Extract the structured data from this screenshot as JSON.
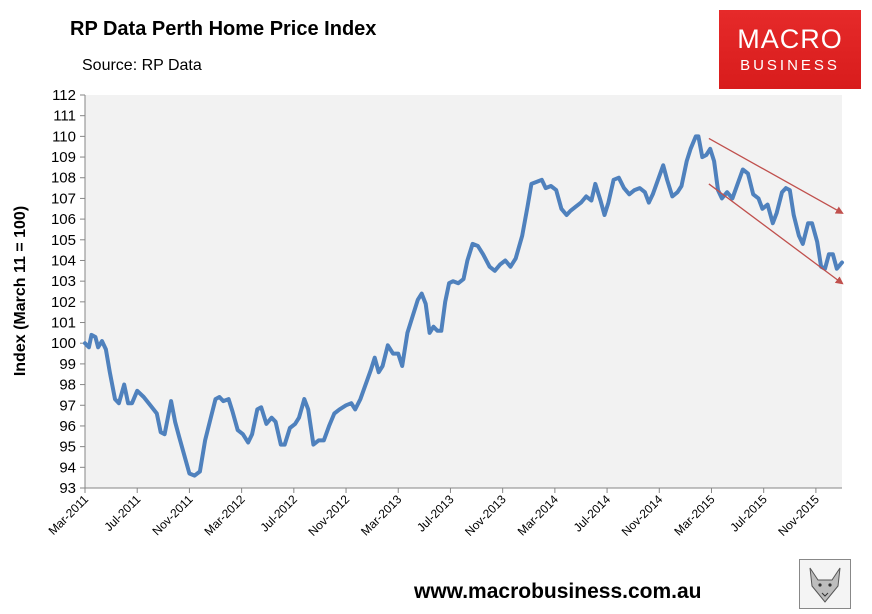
{
  "header": {
    "title": "RP Data Perth Home Price Index",
    "subtitle": "Source: RP Data"
  },
  "logo": {
    "line1": "MACRO",
    "line2": "BUSINESS"
  },
  "footer": {
    "url": "www.macrobusiness.com.au"
  },
  "chart_data": {
    "type": "line",
    "title": "RP Data Perth Home Price Index",
    "xlabel": "",
    "ylabel": "Index (March 11 = 100)",
    "ylim": [
      93,
      112
    ],
    "xlim": [
      0,
      58
    ],
    "yticks": [
      93,
      94,
      95,
      96,
      97,
      98,
      99,
      100,
      101,
      102,
      103,
      104,
      105,
      106,
      107,
      108,
      109,
      110,
      111,
      112
    ],
    "xticks": [
      {
        "x": 0,
        "label": "Mar-2011"
      },
      {
        "x": 4,
        "label": "Jul-2011"
      },
      {
        "x": 8,
        "label": "Nov-2011"
      },
      {
        "x": 12,
        "label": "Mar-2012"
      },
      {
        "x": 16,
        "label": "Jul-2012"
      },
      {
        "x": 20,
        "label": "Nov-2012"
      },
      {
        "x": 24,
        "label": "Mar-2013"
      },
      {
        "x": 28,
        "label": "Jul-2013"
      },
      {
        "x": 32,
        "label": "Nov-2013"
      },
      {
        "x": 36,
        "label": "Mar-2014"
      },
      {
        "x": 40,
        "label": "Jul-2014"
      },
      {
        "x": 44,
        "label": "Nov-2014"
      },
      {
        "x": 48,
        "label": "Mar-2015"
      },
      {
        "x": 52,
        "label": "Jul-2015"
      },
      {
        "x": 56,
        "label": "Nov-2015"
      }
    ],
    "grid": false,
    "series": [
      {
        "name": "Perth Home Price Index",
        "color": "#4f81bd",
        "points": [
          [
            0,
            100.0
          ],
          [
            0.3,
            99.8
          ],
          [
            0.5,
            100.4
          ],
          [
            0.8,
            100.3
          ],
          [
            1.0,
            99.8
          ],
          [
            1.3,
            100.1
          ],
          [
            1.6,
            99.7
          ],
          [
            1.9,
            98.6
          ],
          [
            2.3,
            97.3
          ],
          [
            2.6,
            97.1
          ],
          [
            3.0,
            98.0
          ],
          [
            3.3,
            97.1
          ],
          [
            3.6,
            97.1
          ],
          [
            4.0,
            97.7
          ],
          [
            4.5,
            97.4
          ],
          [
            5.0,
            97.0
          ],
          [
            5.5,
            96.6
          ],
          [
            5.8,
            95.7
          ],
          [
            6.1,
            95.6
          ],
          [
            6.6,
            97.2
          ],
          [
            6.9,
            96.2
          ],
          [
            7.2,
            95.5
          ],
          [
            7.6,
            94.6
          ],
          [
            8.0,
            93.7
          ],
          [
            8.4,
            93.6
          ],
          [
            8.8,
            93.8
          ],
          [
            9.2,
            95.3
          ],
          [
            9.6,
            96.3
          ],
          [
            10.0,
            97.3
          ],
          [
            10.3,
            97.4
          ],
          [
            10.6,
            97.2
          ],
          [
            11.0,
            97.3
          ],
          [
            11.3,
            96.7
          ],
          [
            11.7,
            95.8
          ],
          [
            12.1,
            95.6
          ],
          [
            12.5,
            95.2
          ],
          [
            12.8,
            95.6
          ],
          [
            13.2,
            96.8
          ],
          [
            13.5,
            96.9
          ],
          [
            13.9,
            96.1
          ],
          [
            14.3,
            96.4
          ],
          [
            14.6,
            96.2
          ],
          [
            15.0,
            95.1
          ],
          [
            15.3,
            95.1
          ],
          [
            15.7,
            95.9
          ],
          [
            16.1,
            96.1
          ],
          [
            16.4,
            96.4
          ],
          [
            16.8,
            97.3
          ],
          [
            17.1,
            96.8
          ],
          [
            17.5,
            95.1
          ],
          [
            17.9,
            95.3
          ],
          [
            18.3,
            95.3
          ],
          [
            18.7,
            96.0
          ],
          [
            19.1,
            96.6
          ],
          [
            19.5,
            96.8
          ],
          [
            20.0,
            97.0
          ],
          [
            20.4,
            97.1
          ],
          [
            20.7,
            96.8
          ],
          [
            21.1,
            97.3
          ],
          [
            21.5,
            98.0
          ],
          [
            21.9,
            98.7
          ],
          [
            22.2,
            99.3
          ],
          [
            22.5,
            98.6
          ],
          [
            22.8,
            98.9
          ],
          [
            23.2,
            99.9
          ],
          [
            23.6,
            99.5
          ],
          [
            24.0,
            99.5
          ],
          [
            24.3,
            98.9
          ],
          [
            24.7,
            100.5
          ],
          [
            25.1,
            101.3
          ],
          [
            25.5,
            102.1
          ],
          [
            25.8,
            102.4
          ],
          [
            26.1,
            101.9
          ],
          [
            26.4,
            100.5
          ],
          [
            26.7,
            100.8
          ],
          [
            27.0,
            100.6
          ],
          [
            27.3,
            100.6
          ],
          [
            27.6,
            102.0
          ],
          [
            27.9,
            102.9
          ],
          [
            28.2,
            103.0
          ],
          [
            28.6,
            102.9
          ],
          [
            29.0,
            103.1
          ],
          [
            29.3,
            104.0
          ],
          [
            29.7,
            104.8
          ],
          [
            30.1,
            104.7
          ],
          [
            30.5,
            104.3
          ],
          [
            31.0,
            103.7
          ],
          [
            31.4,
            103.5
          ],
          [
            31.8,
            103.8
          ],
          [
            32.2,
            104.0
          ],
          [
            32.6,
            103.7
          ],
          [
            33.0,
            104.1
          ],
          [
            33.5,
            105.2
          ],
          [
            33.9,
            106.6
          ],
          [
            34.2,
            107.7
          ],
          [
            34.6,
            107.8
          ],
          [
            35.0,
            107.9
          ],
          [
            35.3,
            107.5
          ],
          [
            35.7,
            107.6
          ],
          [
            36.1,
            107.4
          ],
          [
            36.5,
            106.5
          ],
          [
            36.9,
            106.2
          ],
          [
            37.2,
            106.4
          ],
          [
            37.6,
            106.6
          ],
          [
            38.0,
            106.8
          ],
          [
            38.4,
            107.1
          ],
          [
            38.8,
            106.9
          ],
          [
            39.1,
            107.7
          ],
          [
            39.5,
            106.9
          ],
          [
            39.8,
            106.2
          ],
          [
            40.1,
            106.8
          ],
          [
            40.5,
            107.9
          ],
          [
            40.9,
            108.0
          ],
          [
            41.3,
            107.5
          ],
          [
            41.7,
            107.2
          ],
          [
            42.1,
            107.4
          ],
          [
            42.5,
            107.5
          ],
          [
            42.9,
            107.3
          ],
          [
            43.2,
            106.8
          ],
          [
            43.5,
            107.2
          ],
          [
            43.9,
            107.9
          ],
          [
            44.3,
            108.6
          ],
          [
            44.6,
            107.9
          ],
          [
            45.0,
            107.1
          ],
          [
            45.4,
            107.3
          ],
          [
            45.7,
            107.6
          ],
          [
            46.1,
            108.8
          ],
          [
            46.4,
            109.4
          ],
          [
            46.8,
            110.0
          ],
          [
            47.0,
            110.0
          ],
          [
            47.3,
            109.0
          ],
          [
            47.6,
            109.1
          ],
          [
            47.9,
            109.4
          ],
          [
            48.2,
            108.8
          ],
          [
            48.5,
            107.4
          ],
          [
            48.8,
            107.0
          ],
          [
            49.2,
            107.3
          ],
          [
            49.6,
            107.0
          ],
          [
            50.0,
            107.7
          ],
          [
            50.4,
            108.4
          ],
          [
            50.8,
            108.2
          ],
          [
            51.2,
            107.2
          ],
          [
            51.6,
            107.0
          ],
          [
            51.9,
            106.5
          ],
          [
            52.3,
            106.7
          ],
          [
            52.7,
            105.8
          ],
          [
            53.0,
            106.3
          ],
          [
            53.4,
            107.3
          ],
          [
            53.7,
            107.5
          ],
          [
            54.0,
            107.4
          ],
          [
            54.3,
            106.2
          ],
          [
            54.7,
            105.2
          ],
          [
            55.0,
            104.8
          ],
          [
            55.4,
            105.8
          ],
          [
            55.7,
            105.8
          ],
          [
            56.1,
            104.9
          ],
          [
            56.4,
            103.7
          ],
          [
            56.7,
            103.6
          ],
          [
            57.0,
            104.3
          ],
          [
            57.3,
            104.3
          ],
          [
            57.6,
            103.6
          ],
          [
            58.0,
            103.9
          ]
        ]
      }
    ],
    "annotations": [
      {
        "type": "arrow",
        "color": "#c0504d",
        "from": [
          47.8,
          109.9
        ],
        "to": [
          58.0,
          106.3
        ]
      },
      {
        "type": "arrow",
        "color": "#c0504d",
        "from": [
          47.8,
          107.7
        ],
        "to": [
          58.0,
          102.9
        ]
      }
    ]
  }
}
